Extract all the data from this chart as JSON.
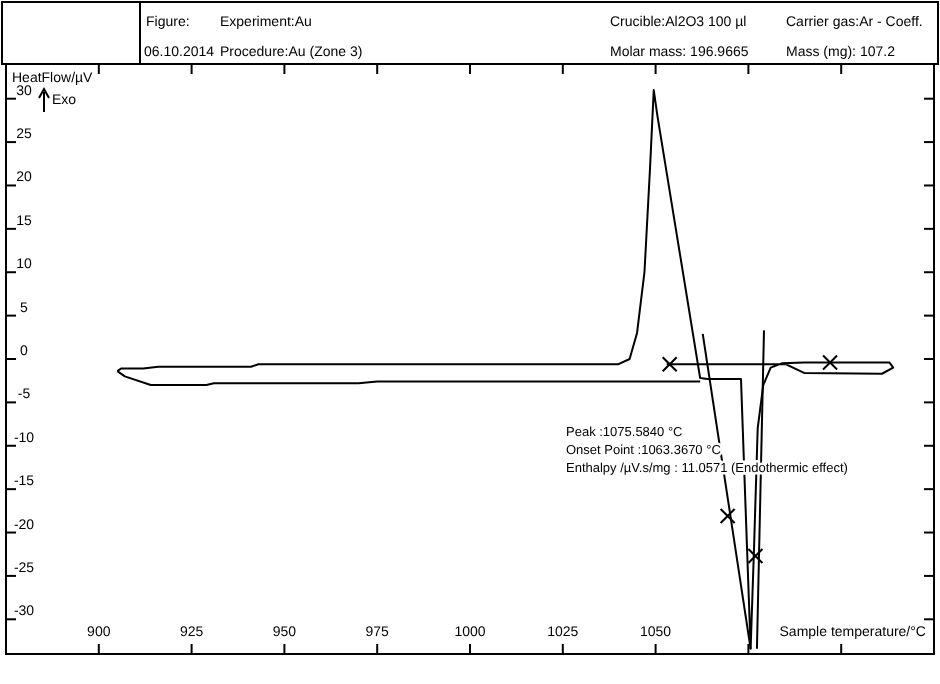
{
  "chart_data": {
    "type": "line",
    "ylabel": "HeatFlow/µV",
    "xlabel": "Sample temperature/°C",
    "annotations": [
      "Figure:",
      "Experiment:Au",
      "Crucible:Al2O3 100 µl",
      "Carrier gas:Ar - Coeff.",
      "06.10.2014",
      "Procedure:Au (Zone 3)",
      "Molar mass: 196.9665",
      "Mass (mg): 107.2",
      "Peak :1075.5840 °C",
      "Onset Point :1063.3670 °C",
      "Enthalpy /µV.s/mg : 11.0571 (Endothermic effect)",
      "Exo"
    ],
    "xlim": [
      875,
      1125
    ],
    "ylim": [
      -34,
      34
    ],
    "xticks": [
      {
        "value": 875,
        "label": null
      },
      900,
      925,
      950,
      975,
      1000,
      1025,
      1050,
      {
        "value": 1075,
        "label": null
      },
      {
        "value": 1100,
        "label": null
      },
      {
        "value": 1125,
        "label": null
      }
    ],
    "yticks": [
      -30,
      -25,
      -20,
      -15,
      -10,
      -5,
      0,
      5,
      10,
      15,
      20,
      25,
      30
    ],
    "grid": false,
    "line_style": "solid",
    "series": [
      {
        "color": "#000000",
        "x": [
          905,
          906,
          912,
          916,
          941,
          943,
          1040,
          1043,
          1045,
          1047,
          1048.5,
          1049.5,
          1050.5,
          1062,
          1064,
          1073,
          1075.6,
          1076.5,
          1077.5,
          1079,
          1081,
          1084,
          1090,
          1110,
          1113,
          1114,
          1111,
          1090,
          1085,
          1053
        ],
        "values": [
          -1.4,
          -1.1,
          -1.1,
          -0.9,
          -0.9,
          -0.6,
          -0.6,
          0,
          3,
          10,
          22,
          31,
          28,
          -2.2,
          -2.3,
          -2.3,
          -33.4,
          -22,
          -8,
          -3,
          -1,
          -0.5,
          -0.4,
          -0.4,
          -0.4,
          -1,
          -1.7,
          -1.6,
          -0.6,
          -0.6
        ]
      },
      {
        "color": "#000000",
        "x": [
          1062,
          975,
          970,
          931,
          929,
          914,
          907,
          905
        ],
        "values": [
          -2.6,
          -2.6,
          -2.8,
          -2.8,
          -3,
          -3,
          -2,
          -1.4
        ]
      },
      {
        "color": "#000000",
        "x": [
          1062.7,
          1075.6
        ],
        "values": [
          2.9,
          -33.4
        ]
      },
      {
        "color": "#000000",
        "x": [
          1079.2,
          1077.3
        ],
        "values": [
          3.3,
          -33.4
        ]
      },
      {
        "type": "scatter",
        "marker": "cross",
        "color": "#000000",
        "x": [
          1053.8,
          1097,
          1069.4,
          1076.9
        ],
        "values": [
          -0.6,
          -0.4,
          -18.1,
          -22.7
        ]
      }
    ]
  }
}
